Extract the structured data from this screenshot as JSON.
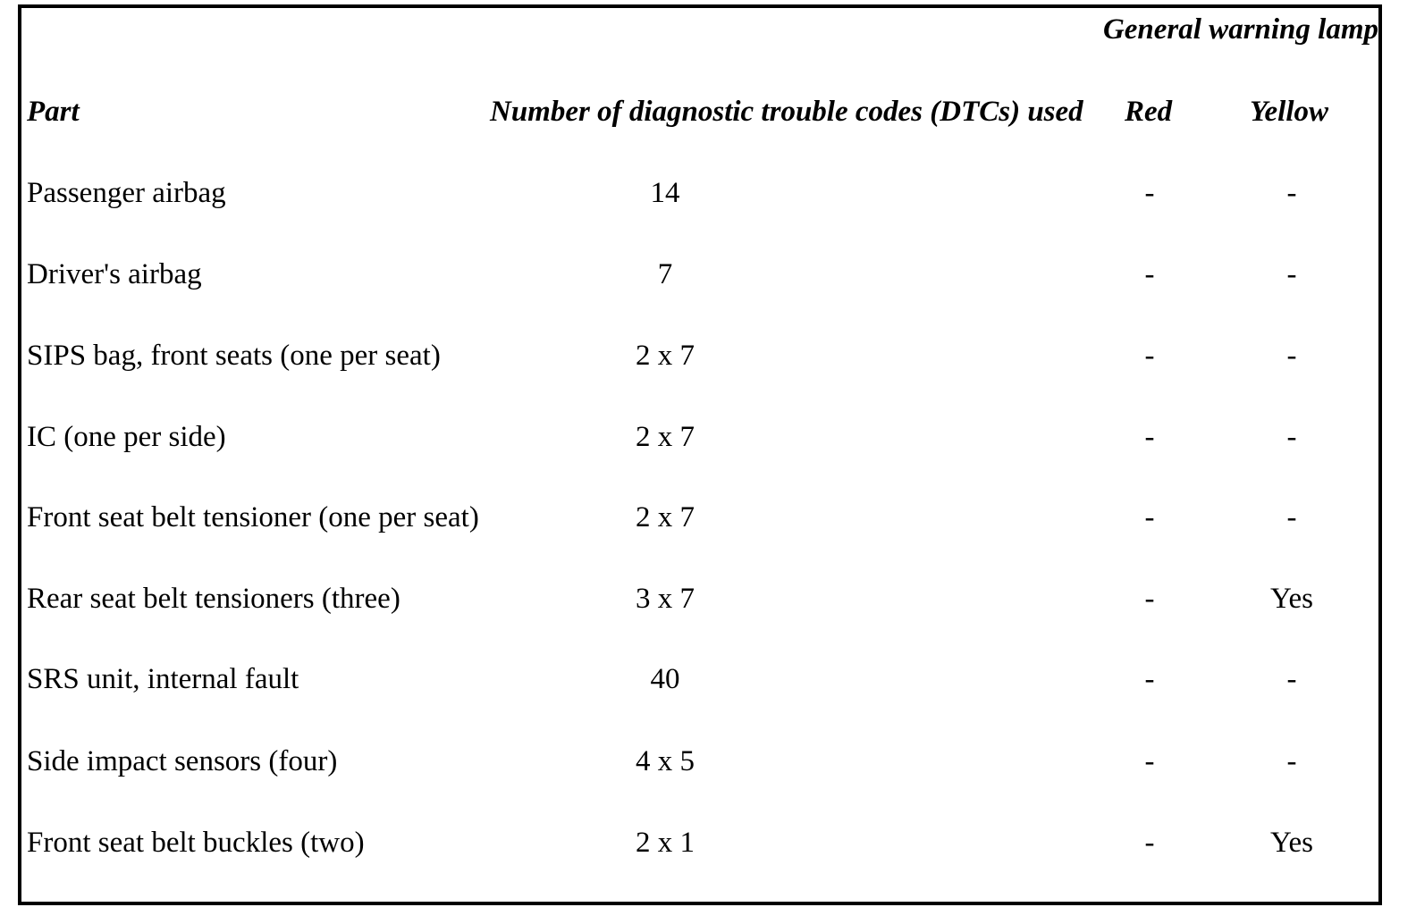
{
  "table": {
    "group_header": "General warning lamp",
    "headers": {
      "part": "Part",
      "dtc": "Number of diagnostic trouble codes (DTCs) used",
      "red": "Red",
      "yellow": "Yellow"
    },
    "rows": [
      {
        "part": "Passenger airbag",
        "dtc": "14",
        "red": "-",
        "yellow": "-"
      },
      {
        "part": "Driver's airbag",
        "dtc": "7",
        "red": "-",
        "yellow": "-"
      },
      {
        "part": "SIPS bag, front seats (one per seat)",
        "dtc": "2 x 7",
        "red": "-",
        "yellow": "-"
      },
      {
        "part": "IC (one per side)",
        "dtc": "2 x 7",
        "red": "-",
        "yellow": "-"
      },
      {
        "part": "Front seat belt tensioner (one per seat)",
        "dtc": "2 x 7",
        "red": "-",
        "yellow": "-"
      },
      {
        "part": "Rear seat belt tensioners (three)",
        "dtc": "3 x 7",
        "red": "-",
        "yellow": "Yes"
      },
      {
        "part": "SRS unit, internal fault",
        "dtc": "40",
        "red": "-",
        "yellow": "-"
      },
      {
        "part": "Side impact sensors (four)",
        "dtc": "4 x 5",
        "red": "-",
        "yellow": "-"
      },
      {
        "part": "Front seat belt buckles (two)",
        "dtc": "2 x 1",
        "red": "-",
        "yellow": "Yes"
      }
    ]
  }
}
